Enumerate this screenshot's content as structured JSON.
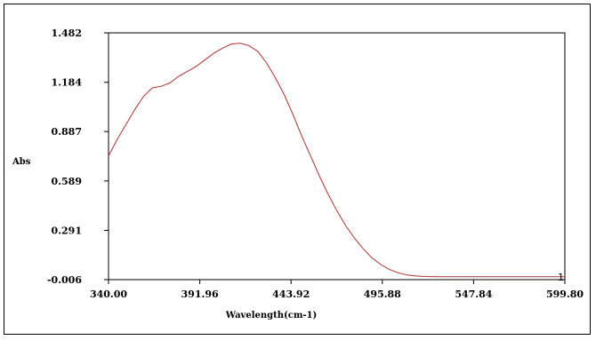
{
  "chart_data": {
    "type": "line",
    "title": "",
    "xlabel": "Wavelength(cm-1)",
    "ylabel": "Abs",
    "xlim": [
      340.0,
      599.8
    ],
    "ylim": [
      -0.006,
      1.482
    ],
    "x_ticks": [
      "340.00",
      "391.96",
      "443.92",
      "495.88",
      "547.84",
      "599.80"
    ],
    "y_ticks": [
      "1.482",
      "1.184",
      "0.887",
      "0.589",
      "0.291",
      "-0.006"
    ],
    "grid": false,
    "legend": "none",
    "series": [
      {
        "label": "1",
        "color": "#b03030",
        "x": [
          340,
          345,
          350,
          355,
          360,
          365,
          370,
          375,
          380,
          385,
          390,
          395,
          400,
          405,
          410,
          415,
          420,
          425,
          430,
          435,
          440,
          445,
          450,
          455,
          460,
          465,
          470,
          475,
          480,
          485,
          490,
          495,
          500,
          505,
          510,
          515,
          520,
          525,
          530,
          540,
          550,
          560,
          570,
          580,
          590,
          599.8
        ],
        "y": [
          0.74,
          0.84,
          0.93,
          1.02,
          1.1,
          1.15,
          1.16,
          1.18,
          1.22,
          1.25,
          1.28,
          1.32,
          1.36,
          1.39,
          1.415,
          1.42,
          1.405,
          1.37,
          1.3,
          1.21,
          1.11,
          0.99,
          0.86,
          0.74,
          0.62,
          0.51,
          0.41,
          0.32,
          0.245,
          0.18,
          0.125,
          0.085,
          0.055,
          0.035,
          0.022,
          0.016,
          0.013,
          0.012,
          0.011,
          0.011,
          0.011,
          0.011,
          0.011,
          0.011,
          0.011,
          0.011
        ]
      }
    ]
  }
}
